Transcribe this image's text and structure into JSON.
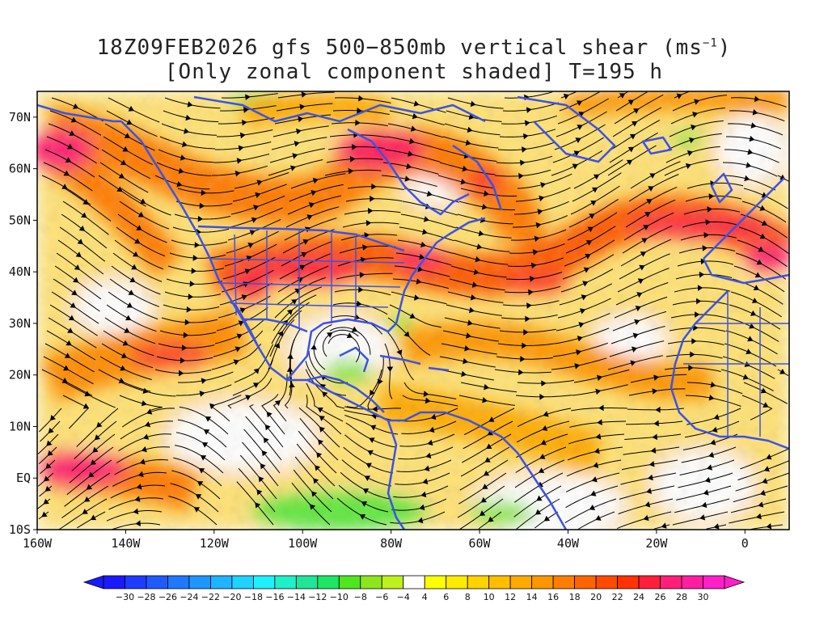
{
  "title": {
    "line1_prefix": "18Z09FEB2026 gfs 500−850mb vertical shear (ms",
    "line1_sup": "−1",
    "line1_suffix": ")",
    "line2": "[Only zonal component shaded] T=195 h"
  },
  "map": {
    "lon_range": [
      -160,
      10
    ],
    "lat_range": [
      -10,
      75
    ],
    "lat_ticks": [
      {
        "value": 70,
        "label": "70N"
      },
      {
        "value": 60,
        "label": "60N"
      },
      {
        "value": 50,
        "label": "50N"
      },
      {
        "value": 40,
        "label": "40N"
      },
      {
        "value": 30,
        "label": "30N"
      },
      {
        "value": 20,
        "label": "20N"
      },
      {
        "value": 10,
        "label": "10N"
      },
      {
        "value": 0,
        "label": "EQ"
      },
      {
        "value": -10,
        "label": "10S"
      }
    ],
    "lon_ticks": [
      {
        "value": -160,
        "label": "160W"
      },
      {
        "value": -140,
        "label": "140W"
      },
      {
        "value": -120,
        "label": "120W"
      },
      {
        "value": -100,
        "label": "100W"
      },
      {
        "value": -80,
        "label": "80W"
      },
      {
        "value": -60,
        "label": "60W"
      },
      {
        "value": -40,
        "label": "40W"
      },
      {
        "value": -20,
        "label": "20W"
      },
      {
        "value": 0,
        "label": "0"
      }
    ],
    "coastline_color": "#3b52e8",
    "streamline_color": "#000000"
  },
  "colorbar": {
    "levels": [
      -30,
      -28,
      -26,
      -24,
      -22,
      -20,
      -18,
      -16,
      -14,
      -12,
      -10,
      -8,
      -6,
      -4,
      4,
      6,
      8,
      10,
      12,
      14,
      16,
      18,
      20,
      22,
      24,
      26,
      28,
      30
    ],
    "colors": [
      "#1a1aff",
      "#1e3cff",
      "#1f5aff",
      "#1f78ff",
      "#1f96ff",
      "#1fb4ff",
      "#1fd2ff",
      "#1ef0ff",
      "#1ef0c8",
      "#1ee696",
      "#1ee664",
      "#50e61e",
      "#8ce61e",
      "#bef01e",
      "#ffffff",
      "#ffff00",
      "#ffeb00",
      "#ffd200",
      "#ffbe00",
      "#ffaa00",
      "#ff9600",
      "#ff7d00",
      "#ff6400",
      "#ff4b00",
      "#ff3200",
      "#ff1e3c",
      "#ff1e78",
      "#ff1ea0",
      "#ff1ec8"
    ],
    "low_color": "#1a1aff",
    "high_color": "#ff1ec8"
  }
}
